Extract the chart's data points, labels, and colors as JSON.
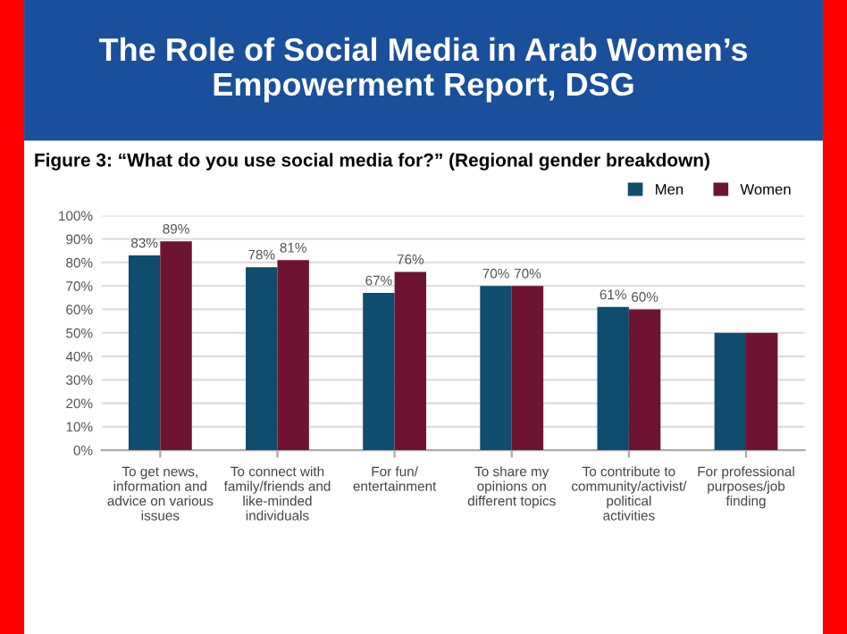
{
  "chart_data": {
    "type": "bar",
    "title": "The Role of Social Media in Arab Women’s Empowerment Report, DSG",
    "subtitle": "Figure 3: “What do you use social media for?” (Regional gender breakdown)",
    "categories": [
      "To get news, information and advice on various issues",
      "To connect with family/friends and like-minded individuals",
      "For fun/ entertainment",
      "To share my opinions on different topics",
      "To contribute to community/activist/ political activities",
      "For professional purposes/job finding"
    ],
    "series": [
      {
        "name": "Men",
        "color": "#0f4c6e",
        "values": [
          83,
          78,
          67,
          70,
          61,
          50
        ],
        "value_labels": [
          "83%",
          "78%",
          "67%",
          "70%",
          "61%",
          null
        ]
      },
      {
        "name": "Women",
        "color": "#6e1432",
        "values": [
          89,
          81,
          76,
          70,
          60,
          50
        ],
        "value_labels": [
          "89%",
          "81%",
          "76%",
          "70%",
          "60%",
          null
        ]
      }
    ],
    "ylim": [
      0,
      100
    ],
    "yticks": [
      {
        "value": 0,
        "label": "0%"
      },
      {
        "value": 10,
        "label": "10%"
      },
      {
        "value": 20,
        "label": "20%"
      },
      {
        "value": 30,
        "label": "30%"
      },
      {
        "value": 40,
        "label": "40%"
      },
      {
        "value": 50,
        "label": "50%"
      },
      {
        "value": 60,
        "label": "60%"
      },
      {
        "value": 70,
        "label": "70%"
      },
      {
        "value": 80,
        "label": "80%"
      },
      {
        "value": 90,
        "label": "90%"
      },
      {
        "value": 100,
        "label": "100%"
      }
    ],
    "grid": "y",
    "legend": "top right"
  }
}
